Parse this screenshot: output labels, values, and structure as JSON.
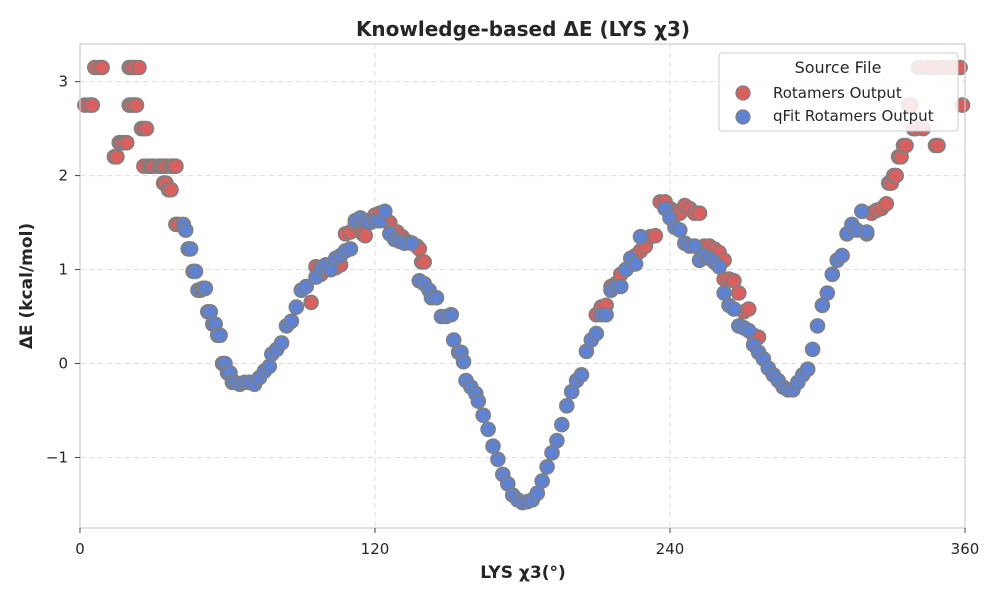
{
  "chart_data": {
    "type": "scatter",
    "title": "Knowledge-based ΔE (LYS χ3)",
    "xlabel": "LYS χ3(°)",
    "ylabel": "ΔE (kcal/mol)",
    "xlim": [
      0,
      360
    ],
    "ylim": [
      -1.75,
      3.4
    ],
    "xticks": [
      0,
      120,
      240,
      360
    ],
    "yticks": [
      -1,
      0,
      1,
      2,
      3
    ],
    "grid": true,
    "legend": {
      "title": "Source File",
      "placement": "top-right"
    },
    "series": [
      {
        "name": "Rotamers Output",
        "color": "#d9605f",
        "points": [
          [
            2,
            2.75
          ],
          [
            4,
            2.75
          ],
          [
            5,
            2.75
          ],
          [
            6,
            3.15
          ],
          [
            8,
            3.15
          ],
          [
            9,
            3.15
          ],
          [
            20,
            3.15
          ],
          [
            14,
            2.2
          ],
          [
            15,
            2.2
          ],
          [
            16,
            2.35
          ],
          [
            17,
            2.35
          ],
          [
            18,
            2.35
          ],
          [
            19,
            2.35
          ],
          [
            20,
            2.75
          ],
          [
            21,
            2.75
          ],
          [
            22,
            2.75
          ],
          [
            23,
            2.75
          ],
          [
            21,
            3.15
          ],
          [
            22,
            3.15
          ],
          [
            24,
            3.15
          ],
          [
            25,
            2.5
          ],
          [
            26,
            2.5
          ],
          [
            27,
            2.5
          ],
          [
            26,
            2.1
          ],
          [
            28,
            2.1
          ],
          [
            29,
            2.1
          ],
          [
            30,
            2.1
          ],
          [
            32,
            2.1
          ],
          [
            33,
            2.1
          ],
          [
            34,
            2.1
          ],
          [
            35,
            2.1
          ],
          [
            37,
            2.1
          ],
          [
            38,
            2.1
          ],
          [
            39,
            2.1
          ],
          [
            34,
            1.92
          ],
          [
            35,
            1.92
          ],
          [
            36,
            1.85
          ],
          [
            37,
            1.85
          ],
          [
            39,
            1.48
          ],
          [
            40,
            1.48
          ],
          [
            94,
            0.65
          ],
          [
            96,
            1.03
          ],
          [
            98,
            0.95
          ],
          [
            100,
            1.05
          ],
          [
            102,
            1.0
          ],
          [
            104,
            1.02
          ],
          [
            106,
            1.05
          ],
          [
            108,
            1.38
          ],
          [
            110,
            1.4
          ],
          [
            112,
            1.48
          ],
          [
            114,
            1.45
          ],
          [
            115,
            1.38
          ],
          [
            116,
            1.36
          ],
          [
            118,
            1.52
          ],
          [
            120,
            1.58
          ],
          [
            122,
            1.6
          ],
          [
            124,
            1.52
          ],
          [
            126,
            1.5
          ],
          [
            127,
            1.42
          ],
          [
            129,
            1.4
          ],
          [
            131,
            1.35
          ],
          [
            133,
            1.3
          ],
          [
            135,
            1.28
          ],
          [
            137,
            1.25
          ],
          [
            138,
            1.22
          ],
          [
            139,
            1.08
          ],
          [
            140,
            1.08
          ],
          [
            210,
            0.52
          ],
          [
            212,
            0.6
          ],
          [
            214,
            0.62
          ],
          [
            216,
            0.82
          ],
          [
            218,
            0.85
          ],
          [
            220,
            0.95
          ],
          [
            222,
            1.0
          ],
          [
            224,
            1.05
          ],
          [
            226,
            1.15
          ],
          [
            228,
            1.2
          ],
          [
            230,
            1.25
          ],
          [
            232,
            1.35
          ],
          [
            234,
            1.36
          ],
          [
            236,
            1.72
          ],
          [
            238,
            1.72
          ],
          [
            240,
            1.65
          ],
          [
            242,
            1.62
          ],
          [
            244,
            1.6
          ],
          [
            246,
            1.68
          ],
          [
            248,
            1.65
          ],
          [
            250,
            1.6
          ],
          [
            252,
            1.6
          ],
          [
            254,
            1.25
          ],
          [
            256,
            1.25
          ],
          [
            258,
            1.22
          ],
          [
            260,
            1.18
          ],
          [
            262,
            1.1
          ],
          [
            262,
            0.9
          ],
          [
            264,
            0.9
          ],
          [
            266,
            0.88
          ],
          [
            268,
            0.75
          ],
          [
            270,
            0.55
          ],
          [
            272,
            0.58
          ],
          [
            274,
            0.3
          ],
          [
            276,
            0.28
          ],
          [
            320,
            1.38
          ],
          [
            322,
            1.6
          ],
          [
            324,
            1.63
          ],
          [
            326,
            1.65
          ],
          [
            328,
            1.7
          ],
          [
            329,
            1.92
          ],
          [
            330,
            1.92
          ],
          [
            331,
            2.0
          ],
          [
            332,
            2.0
          ],
          [
            333,
            2.2
          ],
          [
            334,
            2.2
          ],
          [
            335,
            2.32
          ],
          [
            336,
            2.32
          ],
          [
            337,
            2.75
          ],
          [
            338,
            2.75
          ],
          [
            339,
            2.5
          ],
          [
            340,
            2.5
          ],
          [
            341,
            3.15
          ],
          [
            342,
            3.15
          ],
          [
            343,
            2.5
          ],
          [
            345,
            3.15
          ],
          [
            347,
            3.15
          ],
          [
            348,
            2.32
          ],
          [
            349,
            2.32
          ],
          [
            350,
            3.15
          ],
          [
            352,
            3.15
          ],
          [
            354,
            3.15
          ],
          [
            356,
            3.15
          ],
          [
            358,
            3.15
          ],
          [
            359,
            2.75
          ]
        ]
      },
      {
        "name": "qFit Rotamers Output",
        "color": "#5f82d3",
        "points": [
          [
            42,
            1.48
          ],
          [
            43,
            1.42
          ],
          [
            44,
            1.22
          ],
          [
            45,
            1.22
          ],
          [
            46,
            0.98
          ],
          [
            47,
            0.98
          ],
          [
            48,
            0.78
          ],
          [
            49,
            0.78
          ],
          [
            50,
            0.8
          ],
          [
            51,
            0.8
          ],
          [
            52,
            0.55
          ],
          [
            53,
            0.55
          ],
          [
            54,
            0.42
          ],
          [
            55,
            0.42
          ],
          [
            56,
            0.3
          ],
          [
            57,
            0.3
          ],
          [
            58,
            0.0
          ],
          [
            59,
            0.0
          ],
          [
            60,
            -0.1
          ],
          [
            61,
            -0.1
          ],
          [
            62,
            -0.2
          ],
          [
            63,
            -0.2
          ],
          [
            65,
            -0.22
          ],
          [
            67,
            -0.2
          ],
          [
            69,
            -0.2
          ],
          [
            71,
            -0.22
          ],
          [
            73,
            -0.15
          ],
          [
            75,
            -0.08
          ],
          [
            77,
            -0.03
          ],
          [
            78,
            0.1
          ],
          [
            80,
            0.15
          ],
          [
            82,
            0.22
          ],
          [
            84,
            0.4
          ],
          [
            86,
            0.45
          ],
          [
            88,
            0.6
          ],
          [
            90,
            0.78
          ],
          [
            92,
            0.82
          ],
          [
            96,
            0.92
          ],
          [
            98,
            1.02
          ],
          [
            100,
            1.05
          ],
          [
            102,
            1.0
          ],
          [
            104,
            1.12
          ],
          [
            106,
            1.15
          ],
          [
            108,
            1.2
          ],
          [
            110,
            1.22
          ],
          [
            112,
            1.52
          ],
          [
            114,
            1.55
          ],
          [
            116,
            1.52
          ],
          [
            118,
            1.5
          ],
          [
            120,
            1.52
          ],
          [
            122,
            1.52
          ],
          [
            124,
            1.62
          ],
          [
            126,
            1.38
          ],
          [
            128,
            1.32
          ],
          [
            130,
            1.3
          ],
          [
            132,
            1.28
          ],
          [
            135,
            1.28
          ],
          [
            138,
            0.88
          ],
          [
            140,
            0.85
          ],
          [
            142,
            0.78
          ],
          [
            143,
            0.7
          ],
          [
            145,
            0.7
          ],
          [
            147,
            0.5
          ],
          [
            149,
            0.5
          ],
          [
            151,
            0.52
          ],
          [
            152,
            0.25
          ],
          [
            154,
            0.12
          ],
          [
            155,
            0.12
          ],
          [
            156,
            0.02
          ],
          [
            157,
            -0.18
          ],
          [
            159,
            -0.25
          ],
          [
            161,
            -0.32
          ],
          [
            162,
            -0.4
          ],
          [
            164,
            -0.55
          ],
          [
            166,
            -0.7
          ],
          [
            168,
            -0.88
          ],
          [
            170,
            -1.02
          ],
          [
            172,
            -1.18
          ],
          [
            174,
            -1.28
          ],
          [
            176,
            -1.4
          ],
          [
            178,
            -1.45
          ],
          [
            180,
            -1.48
          ],
          [
            182,
            -1.47
          ],
          [
            184,
            -1.45
          ],
          [
            186,
            -1.38
          ],
          [
            188,
            -1.25
          ],
          [
            190,
            -1.1
          ],
          [
            192,
            -0.95
          ],
          [
            194,
            -0.82
          ],
          [
            196,
            -0.65
          ],
          [
            198,
            -0.45
          ],
          [
            200,
            -0.3
          ],
          [
            202,
            -0.18
          ],
          [
            204,
            -0.12
          ],
          [
            206,
            0.13
          ],
          [
            208,
            0.25
          ],
          [
            210,
            0.32
          ],
          [
            212,
            0.52
          ],
          [
            214,
            0.52
          ],
          [
            216,
            0.78
          ],
          [
            218,
            0.82
          ],
          [
            220,
            0.82
          ],
          [
            222,
            1.0
          ],
          [
            224,
            1.12
          ],
          [
            226,
            1.06
          ],
          [
            228,
            1.35
          ],
          [
            238,
            1.65
          ],
          [
            240,
            1.55
          ],
          [
            242,
            1.45
          ],
          [
            244,
            1.42
          ],
          [
            246,
            1.28
          ],
          [
            248,
            1.25
          ],
          [
            250,
            1.25
          ],
          [
            252,
            1.1
          ],
          [
            254,
            1.15
          ],
          [
            256,
            1.12
          ],
          [
            258,
            1.08
          ],
          [
            260,
            1.03
          ],
          [
            262,
            0.75
          ],
          [
            264,
            0.62
          ],
          [
            266,
            0.58
          ],
          [
            268,
            0.4
          ],
          [
            270,
            0.38
          ],
          [
            272,
            0.35
          ],
          [
            274,
            0.2
          ],
          [
            276,
            0.12
          ],
          [
            278,
            0.05
          ],
          [
            280,
            -0.05
          ],
          [
            282,
            -0.12
          ],
          [
            284,
            -0.18
          ],
          [
            286,
            -0.25
          ],
          [
            288,
            -0.28
          ],
          [
            290,
            -0.28
          ],
          [
            292,
            -0.2
          ],
          [
            294,
            -0.12
          ],
          [
            296,
            -0.06
          ],
          [
            298,
            0.15
          ],
          [
            300,
            0.4
          ],
          [
            302,
            0.62
          ],
          [
            304,
            0.75
          ],
          [
            306,
            0.95
          ],
          [
            308,
            1.1
          ],
          [
            310,
            1.15
          ],
          [
            312,
            1.38
          ],
          [
            314,
            1.48
          ],
          [
            316,
            1.42
          ],
          [
            318,
            1.62
          ],
          [
            320,
            1.4
          ]
        ]
      }
    ]
  }
}
